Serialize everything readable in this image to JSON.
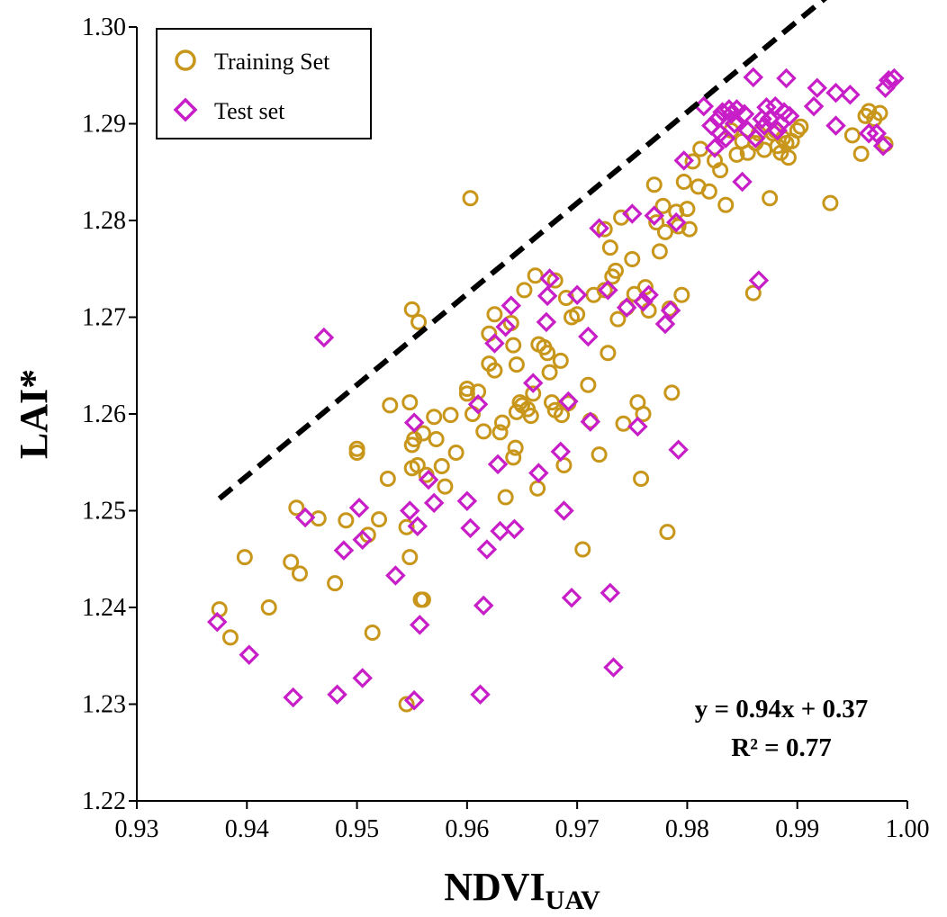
{
  "chart_data": {
    "type": "scatter",
    "xlabel": "NDVI",
    "xlabel_subscript": "UAV",
    "ylabel": "LAI*",
    "xlim": [
      0.93,
      1.0
    ],
    "ylim": [
      1.22,
      1.3
    ],
    "x_ticks": [
      "0.93",
      "0.94",
      "0.95",
      "0.96",
      "0.97",
      "0.98",
      "0.99",
      "1.00"
    ],
    "y_ticks": [
      "1.22",
      "1.23",
      "1.24",
      "1.25",
      "1.26",
      "1.27",
      "1.28",
      "1.29",
      "1.30"
    ],
    "legend": {
      "position": "top-left",
      "entries": [
        {
          "label": "Training Set",
          "marker": "circle",
          "color": "#c8961a"
        },
        {
          "label": "Test set",
          "marker": "diamond",
          "color": "#c81ec8"
        }
      ]
    },
    "trendline": {
      "slope": 0.94,
      "intercept": 0.37,
      "x_range": [
        0.9375,
        0.998
      ],
      "style": "dashed",
      "color": "#000000"
    },
    "annotation": {
      "equation": "y = 0.94x + 0.37",
      "r2": "R² = 0.77"
    },
    "series": [
      {
        "name": "Training Set",
        "marker": "circle",
        "color": "#c8961a",
        "points": [
          [
            0.9375,
            1.2398
          ],
          [
            0.9385,
            1.2369
          ],
          [
            0.9398,
            1.2452
          ],
          [
            0.942,
            1.24
          ],
          [
            0.944,
            1.2447
          ],
          [
            0.9445,
            1.2503
          ],
          [
            0.9448,
            1.2435
          ],
          [
            0.9465,
            1.2492
          ],
          [
            0.948,
            1.2425
          ],
          [
            0.949,
            1.249
          ],
          [
            0.95,
            1.256
          ],
          [
            0.95,
            1.2564
          ],
          [
            0.951,
            1.2475
          ],
          [
            0.9514,
            1.2374
          ],
          [
            0.952,
            1.2491
          ],
          [
            0.9528,
            1.2533
          ],
          [
            0.953,
            1.2609
          ],
          [
            0.9545,
            1.2483
          ],
          [
            0.9548,
            1.2612
          ],
          [
            0.9548,
            1.2452
          ],
          [
            0.955,
            1.2544
          ],
          [
            0.955,
            1.2568
          ],
          [
            0.9552,
            1.2574
          ],
          [
            0.9555,
            1.2547
          ],
          [
            0.9558,
            1.2408
          ],
          [
            0.956,
            1.2408
          ],
          [
            0.9545,
            1.23
          ],
          [
            0.955,
            1.2708
          ],
          [
            0.9556,
            1.2695
          ],
          [
            0.956,
            1.258
          ],
          [
            0.9563,
            1.2537
          ],
          [
            0.957,
            1.2597
          ],
          [
            0.9572,
            1.2574
          ],
          [
            0.9577,
            1.2546
          ],
          [
            0.958,
            1.2525
          ],
          [
            0.9585,
            1.2599
          ],
          [
            0.959,
            1.256
          ],
          [
            0.96,
            1.2626
          ],
          [
            0.96,
            1.2621
          ],
          [
            0.9605,
            1.26
          ],
          [
            0.961,
            1.2623
          ],
          [
            0.9615,
            1.2582
          ],
          [
            0.962,
            1.2683
          ],
          [
            0.962,
            1.2652
          ],
          [
            0.9625,
            1.2703
          ],
          [
            0.9625,
            1.2645
          ],
          [
            0.963,
            1.2581
          ],
          [
            0.9632,
            1.2591
          ],
          [
            0.9635,
            1.2514
          ],
          [
            0.964,
            1.2694
          ],
          [
            0.9642,
            1.2671
          ],
          [
            0.9642,
            1.2555
          ],
          [
            0.9644,
            1.2565
          ],
          [
            0.9645,
            1.2602
          ],
          [
            0.9645,
            1.2651
          ],
          [
            0.9648,
            1.2612
          ],
          [
            0.965,
            1.2609
          ],
          [
            0.9652,
            1.2728
          ],
          [
            0.9655,
            1.2605
          ],
          [
            0.9658,
            1.2598
          ],
          [
            0.966,
            1.2621
          ],
          [
            0.9662,
            1.2743
          ],
          [
            0.9664,
            1.2523
          ],
          [
            0.9665,
            1.2672
          ],
          [
            0.967,
            1.2669
          ],
          [
            0.9673,
            1.2663
          ],
          [
            0.9675,
            1.2643
          ],
          [
            0.9677,
            1.2612
          ],
          [
            0.968,
            1.2738
          ],
          [
            0.968,
            1.2604
          ],
          [
            0.9685,
            1.2655
          ],
          [
            0.9686,
            1.2599
          ],
          [
            0.9688,
            1.2547
          ],
          [
            0.969,
            1.272
          ],
          [
            0.9692,
            1.2611
          ],
          [
            0.9695,
            1.27
          ],
          [
            0.97,
            1.2703
          ],
          [
            0.9705,
            1.246
          ],
          [
            0.971,
            1.263
          ],
          [
            0.9712,
            1.2593
          ],
          [
            0.9715,
            1.2723
          ],
          [
            0.972,
            1.2558
          ],
          [
            0.9725,
            1.2791
          ],
          [
            0.9725,
            1.2728
          ],
          [
            0.9728,
            1.2663
          ],
          [
            0.973,
            1.2772
          ],
          [
            0.9732,
            1.2742
          ],
          [
            0.9735,
            1.2748
          ],
          [
            0.9737,
            1.2698
          ],
          [
            0.974,
            1.2803
          ],
          [
            0.9742,
            1.259
          ],
          [
            0.9745,
            1.271
          ],
          [
            0.975,
            1.276
          ],
          [
            0.9752,
            1.2724
          ],
          [
            0.9755,
            1.2612
          ],
          [
            0.9758,
            1.2533
          ],
          [
            0.976,
            1.26
          ],
          [
            0.9762,
            1.2731
          ],
          [
            0.9765,
            1.2707
          ],
          [
            0.977,
            1.2837
          ],
          [
            0.9772,
            1.2798
          ],
          [
            0.9775,
            1.2768
          ],
          [
            0.9778,
            1.2815
          ],
          [
            0.978,
            1.2788
          ],
          [
            0.9782,
            1.2478
          ],
          [
            0.9784,
            1.2709
          ],
          [
            0.9786,
            1.2622
          ],
          [
            0.979,
            1.2809
          ],
          [
            0.9792,
            1.2794
          ],
          [
            0.9795,
            1.2723
          ],
          [
            0.9797,
            1.284
          ],
          [
            0.98,
            1.2812
          ],
          [
            0.9802,
            1.2791
          ],
          [
            0.9805,
            1.2861
          ],
          [
            0.981,
            1.2835
          ],
          [
            0.9812,
            1.2874
          ],
          [
            0.982,
            1.283
          ],
          [
            0.9825,
            1.2862
          ],
          [
            0.983,
            1.2852
          ],
          [
            0.9835,
            1.2816
          ],
          [
            0.984,
            1.2893
          ],
          [
            0.9845,
            1.2868
          ],
          [
            0.985,
            1.2882
          ],
          [
            0.9855,
            1.287
          ],
          [
            0.986,
            1.2725
          ],
          [
            0.9862,
            1.288
          ],
          [
            0.9865,
            1.289
          ],
          [
            0.987,
            1.2873
          ],
          [
            0.9875,
            1.2823
          ],
          [
            0.9878,
            1.289
          ],
          [
            0.988,
            1.2893
          ],
          [
            0.9882,
            1.2877
          ],
          [
            0.9885,
            1.287
          ],
          [
            0.9887,
            1.2885
          ],
          [
            0.989,
            1.288
          ],
          [
            0.9892,
            1.2865
          ],
          [
            0.9895,
            1.2882
          ],
          [
            0.99,
            1.2893
          ],
          [
            0.9903,
            1.2897
          ],
          [
            0.993,
            1.2818
          ],
          [
            0.995,
            1.2888
          ],
          [
            0.9958,
            1.2869
          ],
          [
            0.9962,
            1.2908
          ],
          [
            0.9965,
            1.2913
          ],
          [
            0.997,
            1.2905
          ],
          [
            0.9975,
            1.2911
          ],
          [
            0.998,
            1.2879
          ],
          [
            0.9603,
            1.2823
          ]
        ]
      },
      {
        "name": "Test set",
        "marker": "diamond",
        "color": "#c81ec8",
        "points": [
          [
            0.9373,
            1.2385
          ],
          [
            0.9402,
            1.2351
          ],
          [
            0.9442,
            1.2307
          ],
          [
            0.9453,
            1.2493
          ],
          [
            0.947,
            1.2679
          ],
          [
            0.9482,
            1.231
          ],
          [
            0.9488,
            1.2459
          ],
          [
            0.9502,
            1.2503
          ],
          [
            0.9505,
            1.247
          ],
          [
            0.9505,
            1.2327
          ],
          [
            0.9535,
            1.2433
          ],
          [
            0.9548,
            1.25
          ],
          [
            0.9552,
            1.2304
          ],
          [
            0.9552,
            1.2591
          ],
          [
            0.9555,
            1.2484
          ],
          [
            0.9557,
            1.2382
          ],
          [
            0.9565,
            1.2532
          ],
          [
            0.957,
            1.2508
          ],
          [
            0.96,
            1.251
          ],
          [
            0.9603,
            1.2482
          ],
          [
            0.961,
            1.261
          ],
          [
            0.9612,
            1.231
          ],
          [
            0.9615,
            1.2402
          ],
          [
            0.9618,
            1.246
          ],
          [
            0.9625,
            1.2673
          ],
          [
            0.9628,
            1.2548
          ],
          [
            0.963,
            1.2479
          ],
          [
            0.9635,
            1.269
          ],
          [
            0.964,
            1.2712
          ],
          [
            0.9643,
            1.2481
          ],
          [
            0.966,
            1.2632
          ],
          [
            0.9665,
            1.2539
          ],
          [
            0.9672,
            1.2695
          ],
          [
            0.9673,
            1.2722
          ],
          [
            0.9675,
            1.274
          ],
          [
            0.9685,
            1.2561
          ],
          [
            0.9688,
            1.25
          ],
          [
            0.9692,
            1.2613
          ],
          [
            0.9695,
            1.241
          ],
          [
            0.97,
            1.2723
          ],
          [
            0.971,
            1.268
          ],
          [
            0.9712,
            1.2592
          ],
          [
            0.972,
            1.2792
          ],
          [
            0.9728,
            1.2728
          ],
          [
            0.973,
            1.2415
          ],
          [
            0.9733,
            1.2338
          ],
          [
            0.9745,
            1.271
          ],
          [
            0.975,
            1.2807
          ],
          [
            0.9755,
            1.2587
          ],
          [
            0.976,
            1.2716
          ],
          [
            0.9765,
            1.2723
          ],
          [
            0.977,
            1.2805
          ],
          [
            0.978,
            1.2693
          ],
          [
            0.9785,
            1.2707
          ],
          [
            0.979,
            1.2798
          ],
          [
            0.9792,
            1.2563
          ],
          [
            0.9797,
            1.2862
          ],
          [
            0.9815,
            1.2918
          ],
          [
            0.9822,
            1.2898
          ],
          [
            0.9825,
            1.2875
          ],
          [
            0.9828,
            1.2905
          ],
          [
            0.983,
            1.289
          ],
          [
            0.9832,
            1.2912
          ],
          [
            0.9835,
            1.2885
          ],
          [
            0.9838,
            1.2915
          ],
          [
            0.984,
            1.291
          ],
          [
            0.9843,
            1.29
          ],
          [
            0.9845,
            1.2915
          ],
          [
            0.985,
            1.284
          ],
          [
            0.9852,
            1.291
          ],
          [
            0.9855,
            1.2893
          ],
          [
            0.986,
            1.2948
          ],
          [
            0.9862,
            1.2885
          ],
          [
            0.9865,
            1.2738
          ],
          [
            0.9868,
            1.2905
          ],
          [
            0.987,
            1.2898
          ],
          [
            0.9872,
            1.2917
          ],
          [
            0.9875,
            1.2905
          ],
          [
            0.988,
            1.2918
          ],
          [
            0.9882,
            1.2893
          ],
          [
            0.9885,
            1.29
          ],
          [
            0.9888,
            1.2912
          ],
          [
            0.989,
            1.2947
          ],
          [
            0.9893,
            1.2908
          ],
          [
            0.9915,
            1.2918
          ],
          [
            0.9918,
            1.2937
          ],
          [
            0.9935,
            1.2932
          ],
          [
            0.9935,
            1.2898
          ],
          [
            0.9948,
            1.293
          ],
          [
            0.9965,
            1.289
          ],
          [
            0.9972,
            1.289
          ],
          [
            0.9978,
            1.2877
          ],
          [
            0.998,
            1.2937
          ],
          [
            0.9983,
            1.2945
          ],
          [
            0.9988,
            1.2947
          ]
        ]
      }
    ]
  }
}
